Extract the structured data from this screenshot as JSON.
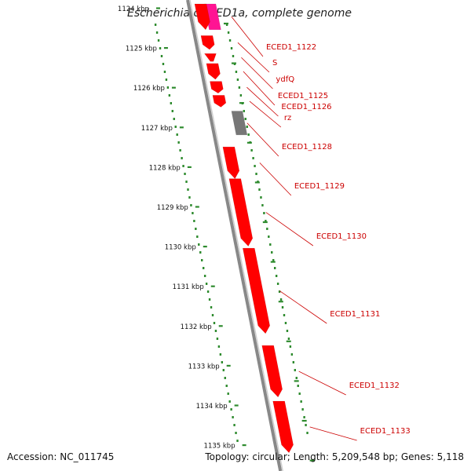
{
  "title": "Escherichia coli ED1a, complete genome",
  "accession": "Accession: NC_011745",
  "topology": "Topology: circular; Length: 5,209,548 bp; Genes: 5,118",
  "colors": {
    "backbone": "#888888",
    "gene": "#ff0000",
    "gene_highlight": "#ff1493",
    "pseudo_gene": "#777777",
    "tick": "#2e8b2e",
    "label": "#cc0000"
  },
  "scale_ticks": [
    {
      "label": "1124 kbp",
      "kbp": 1124
    },
    {
      "label": "1125 kbp",
      "kbp": 1125
    },
    {
      "label": "1126 kbp",
      "kbp": 1126
    },
    {
      "label": "1127 kbp",
      "kbp": 1127
    },
    {
      "label": "1128 kbp",
      "kbp": 1128
    },
    {
      "label": "1129 kbp",
      "kbp": 1129
    },
    {
      "label": "1130 kbp",
      "kbp": 1130
    },
    {
      "label": "1131 kbp",
      "kbp": 1131
    },
    {
      "label": "1132 kbp",
      "kbp": 1132
    },
    {
      "label": "1133 kbp",
      "kbp": 1133
    },
    {
      "label": "1134 kbp",
      "kbp": 1134
    },
    {
      "label": "1135 kbp",
      "kbp": 1135
    }
  ],
  "genes": [
    {
      "label": "",
      "start": 1123.9,
      "end": 1124.55,
      "kind": "highlight"
    },
    {
      "label": "ECED1_1122",
      "start": 1123.9,
      "end": 1124.55,
      "kind": "gene"
    },
    {
      "label": "S",
      "start": 1124.7,
      "end": 1125.05,
      "kind": "gene"
    },
    {
      "label": "ydfQ",
      "start": 1125.15,
      "end": 1125.35,
      "kind": "gene"
    },
    {
      "label": "ECED1_1125",
      "start": 1125.4,
      "end": 1125.8,
      "kind": "gene"
    },
    {
      "label": "ECED1_1126",
      "start": 1125.85,
      "end": 1126.15,
      "kind": "gene"
    },
    {
      "label": "rz",
      "start": 1126.2,
      "end": 1126.5,
      "kind": "gene"
    },
    {
      "label": "ECED1_1128",
      "start": 1126.6,
      "end": 1127.2,
      "kind": "pseudo"
    },
    {
      "label": "ECED1_1129",
      "start": 1127.5,
      "end": 1128.3,
      "kind": "gene"
    },
    {
      "label": "ECED1_1130",
      "start": 1128.3,
      "end": 1130.0,
      "kind": "gene"
    },
    {
      "label": "ECED1_1131",
      "start": 1130.05,
      "end": 1132.2,
      "kind": "gene"
    },
    {
      "label": "ECED1_1132",
      "start": 1132.5,
      "end": 1133.8,
      "kind": "gene"
    },
    {
      "label": "ECED1_1133",
      "start": 1133.9,
      "end": 1135.2,
      "kind": "gene"
    }
  ]
}
